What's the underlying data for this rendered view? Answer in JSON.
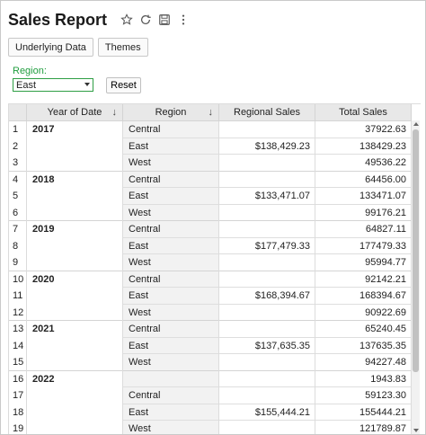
{
  "header": {
    "title": "Sales Report",
    "icons": [
      "star-icon",
      "refresh-icon",
      "save-icon",
      "more-vertical-icon"
    ]
  },
  "toolbar": {
    "underlying_data_label": "Underlying Data",
    "themes_label": "Themes"
  },
  "filter": {
    "label": "Region:",
    "selected": "East",
    "reset_label": "Reset"
  },
  "table": {
    "columns": [
      "Year of Date",
      "Region",
      "Regional Sales",
      "Total Sales"
    ],
    "sort_icon": "sort-down-icon",
    "groups": [
      {
        "year": "2017",
        "rows": [
          {
            "n": "1",
            "region": "Central",
            "regional": "",
            "total": "37922.63"
          },
          {
            "n": "2",
            "region": "East",
            "regional": "$138,429.23",
            "total": "138429.23"
          },
          {
            "n": "3",
            "region": "West",
            "regional": "",
            "total": "49536.22"
          }
        ]
      },
      {
        "year": "2018",
        "rows": [
          {
            "n": "4",
            "region": "Central",
            "regional": "",
            "total": "64456.00"
          },
          {
            "n": "5",
            "region": "East",
            "regional": "$133,471.07",
            "total": "133471.07"
          },
          {
            "n": "6",
            "region": "West",
            "regional": "",
            "total": "99176.21"
          }
        ]
      },
      {
        "year": "2019",
        "rows": [
          {
            "n": "7",
            "region": "Central",
            "regional": "",
            "total": "64827.11"
          },
          {
            "n": "8",
            "region": "East",
            "regional": "$177,479.33",
            "total": "177479.33"
          },
          {
            "n": "9",
            "region": "West",
            "regional": "",
            "total": "95994.77"
          }
        ]
      },
      {
        "year": "2020",
        "rows": [
          {
            "n": "10",
            "region": "Central",
            "regional": "",
            "total": "92142.21"
          },
          {
            "n": "11",
            "region": "East",
            "regional": "$168,394.67",
            "total": "168394.67"
          },
          {
            "n": "12",
            "region": "West",
            "regional": "",
            "total": "90922.69"
          }
        ]
      },
      {
        "year": "2021",
        "rows": [
          {
            "n": "13",
            "region": "Central",
            "regional": "",
            "total": "65240.45"
          },
          {
            "n": "14",
            "region": "East",
            "regional": "$137,635.35",
            "total": "137635.35"
          },
          {
            "n": "15",
            "region": "West",
            "regional": "",
            "total": "94227.48"
          }
        ]
      },
      {
        "year": "2022",
        "rows": [
          {
            "n": "16",
            "region": "",
            "regional": "",
            "total": "1943.83"
          },
          {
            "n": "17",
            "region": "Central",
            "regional": "",
            "total": "59123.30"
          },
          {
            "n": "18",
            "region": "East",
            "regional": "$155,444.21",
            "total": "155444.21"
          },
          {
            "n": "19",
            "region": "West",
            "regional": "",
            "total": "121789.87"
          }
        ]
      }
    ]
  },
  "colors": {
    "label_green": "#1f9d3e",
    "header_bg": "#e8e8e8",
    "region_col_bg": "#f2f2f2"
  }
}
